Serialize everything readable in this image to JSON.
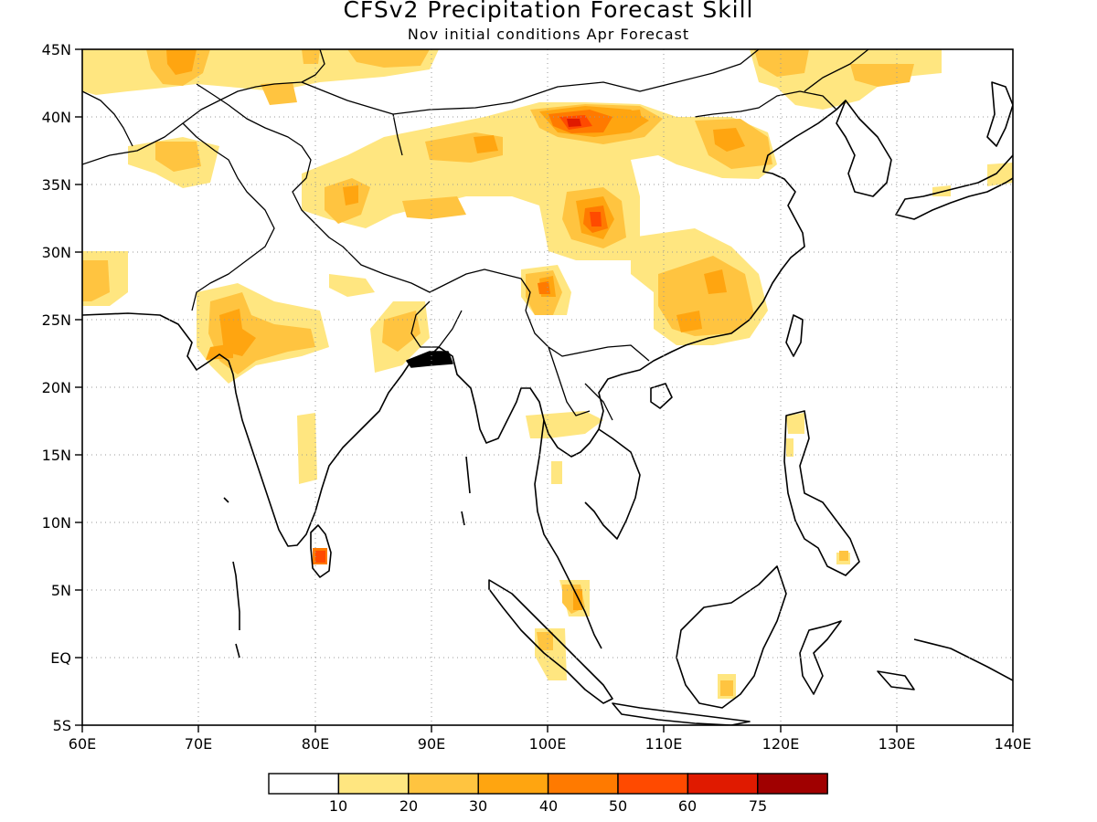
{
  "title": "CFSv2 Precipitation Forecast Skill",
  "subtitle": "Nov initial conditions  Apr Forecast",
  "axes": {
    "lon_labels": [
      "60E",
      "70E",
      "80E",
      "90E",
      "100E",
      "110E",
      "120E",
      "130E",
      "140E"
    ],
    "lat_labels": [
      "45N",
      "40N",
      "35N",
      "30N",
      "25N",
      "20N",
      "15N",
      "10N",
      "5N",
      "EQ",
      "5S"
    ]
  },
  "colorbar": {
    "colors": [
      "#ffffff",
      "#ffe680",
      "#ffc440",
      "#ffa510",
      "#ff7a00",
      "#ff4a00",
      "#e01a00",
      "#a00000"
    ],
    "labels": [
      "10",
      "20",
      "30",
      "40",
      "50",
      "60",
      "75"
    ]
  }
}
